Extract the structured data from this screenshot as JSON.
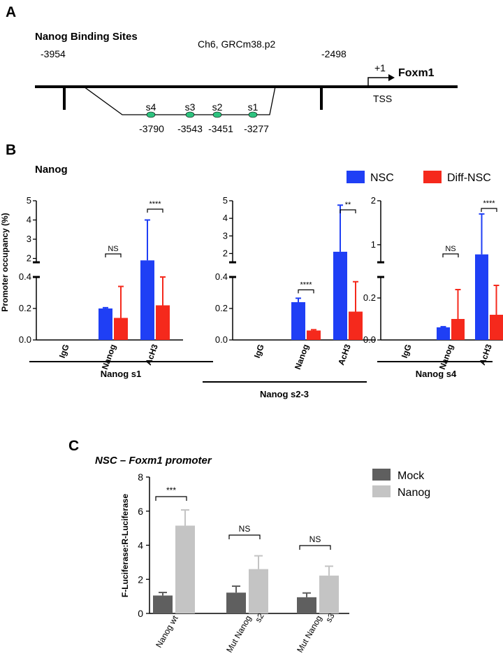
{
  "panel_a": {
    "letter": "A",
    "title": "Nanog Binding Sites",
    "chromosome": "Ch6, GRCm38.p2",
    "left_coord": "-3954",
    "right_coord": "-2498",
    "tss_mark": "+1",
    "gene": "Foxm1",
    "tss_label": "TSS",
    "sites": [
      {
        "name": "s4",
        "pos": "-3790"
      },
      {
        "name": "s3",
        "pos": "-3543"
      },
      {
        "name": "s2",
        "pos": "-3451"
      },
      {
        "name": "s1",
        "pos": "-3277"
      }
    ],
    "site_color": "#2ec27e"
  },
  "panel_b": {
    "letter": "B",
    "subtitle": "Nanog",
    "ylabel": "Promoter occupancy (%)",
    "legend": [
      {
        "name": "NSC",
        "color": "#1f3ff5"
      },
      {
        "name": "Diff-NSC",
        "color": "#f5291c"
      }
    ]
  },
  "panel_c": {
    "letter": "C",
    "title": "NSC – Foxm1 promoter",
    "ylabel": "F-Luciferase:R-Luciferase",
    "legend": [
      {
        "name": "Mock",
        "color": "#5f5f5f"
      },
      {
        "name": "Nanog",
        "color": "#c4c4c4"
      }
    ]
  },
  "chart_data": [
    {
      "type": "bar",
      "group_label": "Nanog s1",
      "categories": [
        "IgG",
        "Nanog",
        "AcH3"
      ],
      "series": [
        {
          "name": "NSC",
          "values": [
            0,
            0.2,
            1.9
          ],
          "errors": [
            0,
            0.005,
            2.1
          ]
        },
        {
          "name": "Diff-NSC",
          "values": [
            0,
            0.14,
            0.22
          ],
          "errors": [
            0,
            0.2,
            0.28
          ]
        }
      ],
      "axis_break": {
        "lower": [
          0,
          0.4
        ],
        "upper": [
          1.8,
          5
        ]
      },
      "yticks_lower": [
        "0.0",
        "0.2",
        "0.4"
      ],
      "yticks_upper": [
        "2",
        "3",
        "4",
        "5"
      ],
      "significance": [
        {
          "category": "Nanog",
          "label": "NS"
        },
        {
          "category": "AcH3",
          "label": "****"
        }
      ]
    },
    {
      "type": "bar",
      "group_label": "Nanog s2-3",
      "categories": [
        "IgG",
        "Nanog",
        "AcH3"
      ],
      "series": [
        {
          "name": "NSC",
          "values": [
            0,
            0.24,
            2.1
          ],
          "errors": [
            0,
            0.025,
            2.65
          ]
        },
        {
          "name": "Diff-NSC",
          "values": [
            0,
            0.06,
            0.18
          ],
          "errors": [
            0,
            0.005,
            0.19
          ]
        }
      ],
      "axis_break": {
        "lower": [
          0,
          0.4
        ],
        "upper": [
          1.5,
          5
        ]
      },
      "yticks_lower": [
        "0.0",
        "0.2",
        "0.4"
      ],
      "yticks_upper": [
        "2",
        "3",
        "4",
        "5"
      ],
      "significance": [
        {
          "category": "Nanog",
          "label": "****"
        },
        {
          "category": "AcH3",
          "label": "**"
        }
      ]
    },
    {
      "type": "bar",
      "group_label": "Nanog s4",
      "categories": [
        "IgG",
        "Nanog",
        "AcH3"
      ],
      "series": [
        {
          "name": "NSC",
          "values": [
            0,
            0.06,
            0.78
          ],
          "errors": [
            0,
            0.003,
            0.92
          ]
        },
        {
          "name": "Diff-NSC",
          "values": [
            0,
            0.1,
            0.12
          ],
          "errors": [
            0,
            0.14,
            0.14
          ]
        }
      ],
      "axis_break": {
        "lower": [
          0,
          0.3
        ],
        "upper": [
          0.6,
          2
        ]
      },
      "yticks_lower": [
        "0.0",
        "0.2"
      ],
      "yticks_upper": [
        "1",
        "2"
      ],
      "significance": [
        {
          "category": "Nanog",
          "label": "NS"
        },
        {
          "category": "AcH3",
          "label": "****"
        }
      ]
    },
    {
      "type": "bar",
      "title": "NSC – Foxm1 promoter",
      "categories": [
        "Nanog wt",
        "Mut Nanog s2",
        "Mut Nanog s3"
      ],
      "series": [
        {
          "name": "Mock",
          "values": [
            1.05,
            1.22,
            0.95
          ],
          "errors": [
            0.18,
            0.38,
            0.25
          ]
        },
        {
          "name": "Nanog",
          "values": [
            5.15,
            2.6,
            2.22
          ],
          "errors": [
            0.92,
            0.78,
            0.55
          ]
        }
      ],
      "ylabel": "F-Luciferase:R-Luciferase",
      "ylim": [
        0,
        8
      ],
      "yticks": [
        "0",
        "2",
        "4",
        "6",
        "8"
      ],
      "significance": [
        {
          "category": "Nanog wt",
          "label": "***"
        },
        {
          "category": "Mut Nanog s2",
          "label": "NS"
        },
        {
          "category": "Mut Nanog s3",
          "label": "NS"
        }
      ]
    }
  ]
}
